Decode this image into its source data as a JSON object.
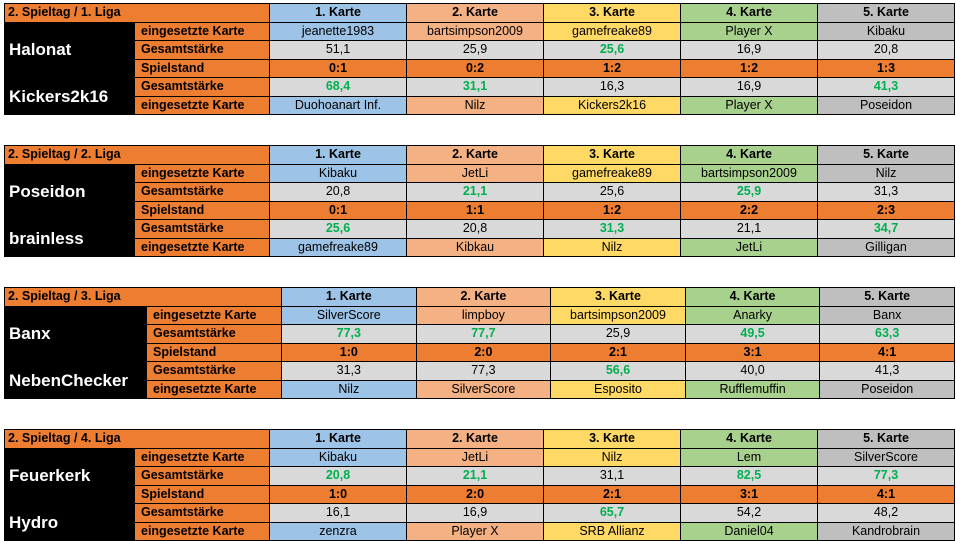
{
  "accent": {
    "orange": "#ed7d31",
    "blue": "#9dc3e6",
    "salmon": "#f4b183",
    "yellow": "#ffd966",
    "green": "#a9d18e",
    "grey": "#bfbfbf",
    "win": "#00b050"
  },
  "row_labels": {
    "card": "eingesetzte Karte",
    "strength": "Gesamtstärke",
    "score": "Spielstand"
  },
  "card_headers": [
    "1. Karte",
    "2. Karte",
    "3. Karte",
    "4. Karte",
    "5. Karte"
  ],
  "leagues": [
    {
      "title": "2. Spieltag / 1. Liga",
      "team1": "Halonat",
      "team2": "Kickers2k16",
      "cards1": [
        "jeanette1983",
        "bartsimpson2009",
        "gamefreake89",
        "Player X",
        "Kibaku"
      ],
      "strength1": [
        "51,1",
        "25,9",
        "25,6",
        "16,9",
        "20,8"
      ],
      "win1": [
        false,
        false,
        true,
        false,
        false
      ],
      "score": [
        "0:1",
        "0:2",
        "1:2",
        "1:2",
        "1:3"
      ],
      "strength2": [
        "68,4",
        "31,1",
        "16,3",
        "16,9",
        "41,3"
      ],
      "win2": [
        true,
        true,
        false,
        false,
        true
      ],
      "cards2": [
        "Duohoanart Inf.",
        "Nilz",
        "Kickers2k16",
        "Player X",
        "Poseidon"
      ]
    },
    {
      "title": "2. Spieltag / 2. Liga",
      "team1": "Poseidon",
      "team2": "brainless",
      "cards1": [
        "Kibaku",
        "JetLi",
        "gamefreake89",
        "bartsimpson2009",
        "Nilz"
      ],
      "strength1": [
        "20,8",
        "21,1",
        "25,6",
        "25,9",
        "31,3"
      ],
      "win1": [
        false,
        true,
        false,
        true,
        false
      ],
      "score": [
        "0:1",
        "1:1",
        "1:2",
        "2:2",
        "2:3"
      ],
      "strength2": [
        "25,6",
        "20,8",
        "31,3",
        "21,1",
        "34,7"
      ],
      "win2": [
        true,
        false,
        true,
        false,
        true
      ],
      "cards2": [
        "gamefreake89",
        "Kibkau",
        "Nilz",
        "JetLi",
        "Gilligan"
      ]
    },
    {
      "title": "2. Spieltag / 3. Liga",
      "team1": "Banx",
      "team2": "NebenChecker",
      "cards1": [
        "SilverScore",
        "limpboy",
        "bartsimpson2009",
        "Anarky",
        "Banx"
      ],
      "strength1": [
        "77,3",
        "77,7",
        "25,9",
        "49,5",
        "63,3"
      ],
      "win1": [
        true,
        true,
        false,
        true,
        true
      ],
      "score": [
        "1:0",
        "2:0",
        "2:1",
        "3:1",
        "4:1"
      ],
      "strength2": [
        "31,3",
        "77,3",
        "56,6",
        "40,0",
        "41,3"
      ],
      "win2": [
        false,
        false,
        true,
        false,
        false
      ],
      "cards2": [
        "Nilz",
        "SilverScore",
        "Esposito",
        "Rufflemuffin",
        "Poseidon"
      ]
    },
    {
      "title": "2. Spieltag / 4. Liga",
      "team1": "Feuerkerk",
      "team2": "Hydro",
      "cards1": [
        "Kibaku",
        "JetLi",
        "Nilz",
        "Lem",
        "SilverScore"
      ],
      "strength1": [
        "20,8",
        "21,1",
        "31,1",
        "82,5",
        "77,3"
      ],
      "win1": [
        true,
        true,
        false,
        true,
        true
      ],
      "score": [
        "1:0",
        "2:0",
        "2:1",
        "3:1",
        "4:1"
      ],
      "strength2": [
        "16,1",
        "16,9",
        "65,7",
        "54,2",
        "48,2"
      ],
      "win2": [
        false,
        false,
        true,
        false,
        false
      ],
      "cards2": [
        "zenzra",
        "Player X",
        "SRB Allianz",
        "Daniel04",
        "Kandrobrain"
      ]
    }
  ]
}
